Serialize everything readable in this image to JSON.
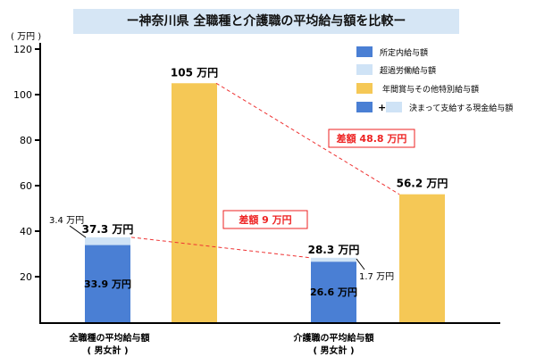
{
  "title": "ー神奈川県 全職種と介護職の平均給与額を比較ー",
  "chart_data": {
    "type": "bar",
    "ylabel": "( 万円 )",
    "ylim": [
      0,
      120
    ],
    "yticks": [
      20,
      40,
      60,
      80,
      100,
      120
    ],
    "categories": [
      {
        "line1": "全職種の平均給与額",
        "line2": "( 男女計 )"
      },
      {
        "line1": "介護職の平均給与額",
        "line2": "( 男女計 )"
      }
    ],
    "series": [
      {
        "name": "所定内給与額",
        "color": "#4a7fd4",
        "values": [
          33.9,
          26.6
        ],
        "labels": [
          "33.9 万円",
          "26.6 万円"
        ]
      },
      {
        "name": "超過労働給与額",
        "color": "#cfe3f6",
        "values": [
          3.4,
          1.7
        ],
        "labels": [
          "3.4 万円",
          "1.7 万円"
        ]
      },
      {
        "name": "年間賞与その他特別給与額",
        "color": "#f5c856",
        "values": [
          105,
          56.2
        ],
        "labels": [
          "105 万円",
          "56.2 万円"
        ]
      }
    ],
    "totals": [
      "37.3 万円",
      "28.3 万円"
    ],
    "legend_combined": {
      "plus": "+",
      "label": "決まって支給する現金給与額"
    },
    "differences": [
      "差額 9 万円",
      "差額 48.8 万円"
    ],
    "legend_position": "top-right"
  }
}
